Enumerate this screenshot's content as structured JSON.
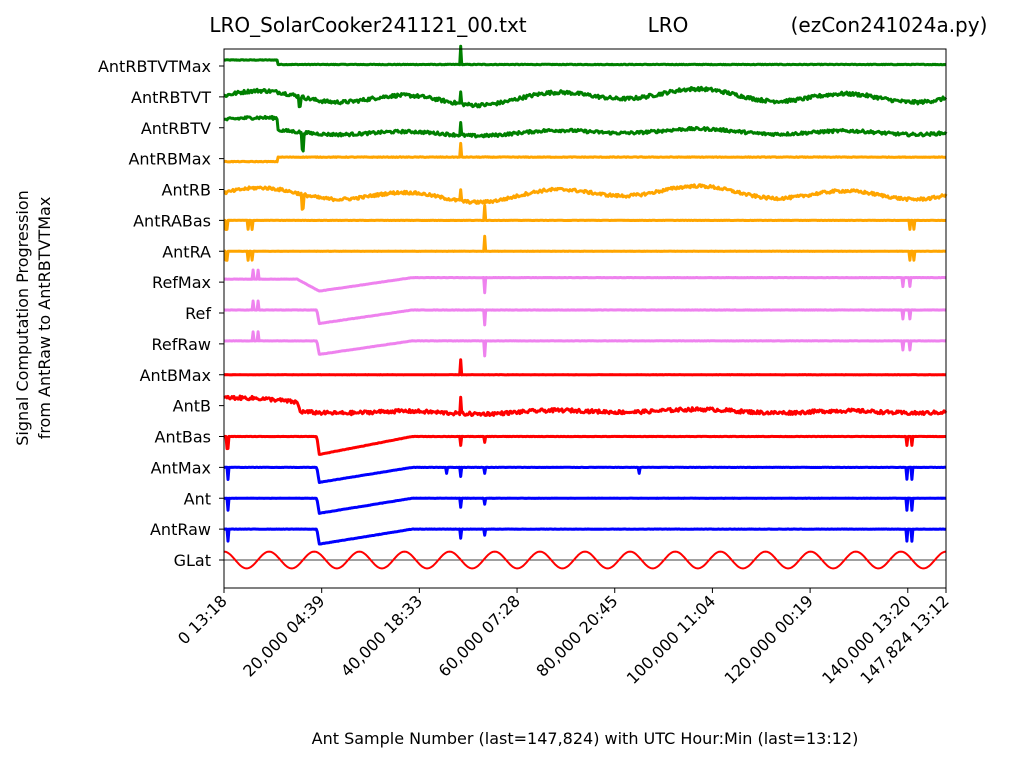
{
  "chart_data": {
    "type": "line",
    "title_left": "LRO_SolarCooker241121_00.txt",
    "title_center": "LRO",
    "title_right": "(ezCon241024a.py)",
    "xlabel": "Ant Sample Number (last=147,824) with UTC Hour:Min (last=13:12)",
    "ylabel_line1": "Signal Computation Progression",
    "ylabel_line2": "from AntRaw to AntRBTVTMax",
    "xlim": [
      0,
      147824
    ],
    "x_ticks": [
      {
        "value": 0,
        "label": "0  13:18"
      },
      {
        "value": 20000,
        "label": "20,000  04:39"
      },
      {
        "value": 40000,
        "label": "40,000  18:33"
      },
      {
        "value": 60000,
        "label": "60,000  07:28"
      },
      {
        "value": 80000,
        "label": "80,000  20:45"
      },
      {
        "value": 100000,
        "label": "100,000  11:04"
      },
      {
        "value": 120000,
        "label": "120,000  00:19"
      },
      {
        "value": 140000,
        "label": "140,000  13:20"
      },
      {
        "value": 147824,
        "label": "147,824  13:12"
      }
    ],
    "colors": {
      "green": "#008000",
      "orange": "#ffa500",
      "violet": "#ee82ee",
      "red": "#ff0000",
      "blue": "#0000ff",
      "zero_line": "#000000"
    },
    "rows": [
      {
        "label": "AntRBTVTMax",
        "color": "#008000",
        "kind": "max",
        "base": 0.2,
        "step": [
          [
            0,
            0
          ],
          [
            11000,
            0
          ],
          [
            11001,
            -0.15
          ]
        ],
        "amp": 0.02,
        "noise": 0.02,
        "spikes": [
          [
            48500,
            0.6
          ]
        ]
      },
      {
        "label": "AntRBTVT",
        "color": "#008000",
        "kind": "wavy",
        "base": 0.0,
        "amp": 0.35,
        "noise": 0.12,
        "spikes": [
          [
            48500,
            0.4
          ],
          [
            15500,
            -0.3
          ]
        ]
      },
      {
        "label": "AntRBTV",
        "color": "#008000",
        "kind": "wavy",
        "base": 0.25,
        "step": [
          [
            0,
            0
          ],
          [
            11000,
            0
          ],
          [
            11001,
            -0.4
          ]
        ],
        "amp": 0.15,
        "noise": 0.1,
        "spikes": [
          [
            16100,
            -0.6
          ],
          [
            48500,
            0.4
          ]
        ]
      },
      {
        "label": "AntRBMax",
        "color": "#ffa500",
        "kind": "max",
        "base": 0.0,
        "step": [
          [
            0,
            -0.1
          ],
          [
            11000,
            -0.1
          ],
          [
            11001,
            0.05
          ]
        ],
        "amp": 0.0,
        "noise": 0.02,
        "spikes": [
          [
            48500,
            0.45
          ]
        ]
      },
      {
        "label": "AntRB",
        "color": "#ffa500",
        "kind": "wavy",
        "base": -0.15,
        "amp": 0.35,
        "noise": 0.1,
        "spikes": [
          [
            16100,
            -0.5
          ],
          [
            48500,
            0.4
          ]
        ]
      },
      {
        "label": "AntRABas",
        "color": "#ffa500",
        "kind": "flat",
        "base": 0.0,
        "amp": 0.0,
        "noise": 0.01,
        "spikes": [
          [
            500,
            -0.3
          ],
          [
            5000,
            -0.3
          ],
          [
            5800,
            -0.3
          ],
          [
            53400,
            0.5
          ],
          [
            140500,
            -0.3
          ],
          [
            141200,
            -0.3
          ]
        ]
      },
      {
        "label": "AntRA",
        "color": "#ffa500",
        "kind": "flat",
        "base": 0.0,
        "amp": 0.0,
        "noise": 0.01,
        "spikes": [
          [
            500,
            -0.3
          ],
          [
            5000,
            -0.3
          ],
          [
            5800,
            -0.3
          ],
          [
            53400,
            0.5
          ],
          [
            140500,
            -0.3
          ],
          [
            141200,
            -0.3
          ]
        ]
      },
      {
        "label": "RefMax",
        "color": "#ee82ee",
        "kind": "step",
        "base": 0.0,
        "step": [
          [
            0,
            0.1
          ],
          [
            15000,
            0.1
          ],
          [
            19500,
            -0.3
          ],
          [
            38500,
            0.15
          ],
          [
            147824,
            0.15
          ]
        ],
        "noise": 0.01,
        "spikes": [
          [
            6000,
            0.3
          ],
          [
            7000,
            0.3
          ],
          [
            53400,
            -0.5
          ],
          [
            139000,
            -0.3
          ],
          [
            140500,
            -0.3
          ]
        ]
      },
      {
        "label": "Ref",
        "color": "#ee82ee",
        "kind": "step",
        "base": 0.0,
        "step": [
          [
            0,
            0.1
          ],
          [
            19000,
            0.1
          ],
          [
            19500,
            -0.35
          ],
          [
            38500,
            0.1
          ],
          [
            147824,
            0.1
          ]
        ],
        "noise": 0.01,
        "spikes": [
          [
            6000,
            0.3
          ],
          [
            7000,
            0.3
          ],
          [
            53400,
            -0.5
          ],
          [
            139000,
            -0.3
          ],
          [
            140500,
            -0.3
          ]
        ]
      },
      {
        "label": "RefRaw",
        "color": "#ee82ee",
        "kind": "step",
        "base": 0.0,
        "step": [
          [
            0,
            0.1
          ],
          [
            19000,
            0.1
          ],
          [
            19500,
            -0.35
          ],
          [
            38500,
            0.1
          ],
          [
            147824,
            0.1
          ]
        ],
        "noise": 0.01,
        "spikes": [
          [
            6000,
            0.3
          ],
          [
            7000,
            0.3
          ],
          [
            53400,
            -0.5
          ],
          [
            139000,
            -0.3
          ],
          [
            140500,
            -0.3
          ]
        ]
      },
      {
        "label": "AntBMax",
        "color": "#ff0000",
        "kind": "max",
        "base": 0.0,
        "amp": 0.0,
        "noise": 0.01,
        "spikes": [
          [
            48500,
            0.5
          ]
        ]
      },
      {
        "label": "AntB",
        "color": "#ff0000",
        "kind": "wavy",
        "base": 0.0,
        "step": [
          [
            0,
            0.25
          ],
          [
            15000,
            0.1
          ],
          [
            15600,
            -0.2
          ]
        ],
        "amp": 0.1,
        "noise": 0.12,
        "spikes": [
          [
            48500,
            0.5
          ]
        ]
      },
      {
        "label": "AntBas",
        "color": "#ff0000",
        "kind": "step",
        "base": 0.0,
        "step": [
          [
            0,
            0
          ],
          [
            19000,
            0
          ],
          [
            19500,
            -0.6
          ],
          [
            38500,
            0
          ],
          [
            147824,
            0
          ]
        ],
        "noise": 0.01,
        "spikes": [
          [
            700,
            -0.4
          ],
          [
            48500,
            -0.3
          ],
          [
            53400,
            -0.2
          ],
          [
            139800,
            -0.3
          ],
          [
            140800,
            -0.3
          ]
        ]
      },
      {
        "label": "AntMax",
        "color": "#0000ff",
        "kind": "step",
        "base": 0.0,
        "step": [
          [
            0,
            0
          ],
          [
            19000,
            0
          ],
          [
            19500,
            -0.5
          ],
          [
            38500,
            0
          ],
          [
            147824,
            0
          ]
        ],
        "noise": 0.01,
        "spikes": [
          [
            800,
            -0.4
          ],
          [
            45500,
            -0.2
          ],
          [
            48500,
            -0.3
          ],
          [
            53400,
            -0.2
          ],
          [
            85000,
            -0.2
          ],
          [
            139800,
            -0.4
          ],
          [
            140800,
            -0.4
          ]
        ]
      },
      {
        "label": "Ant",
        "color": "#0000ff",
        "kind": "step",
        "base": 0.0,
        "step": [
          [
            0,
            0
          ],
          [
            19000,
            0
          ],
          [
            19500,
            -0.5
          ],
          [
            38500,
            0
          ],
          [
            147824,
            0
          ]
        ],
        "noise": 0.01,
        "spikes": [
          [
            800,
            -0.4
          ],
          [
            48500,
            -0.3
          ],
          [
            53400,
            -0.2
          ],
          [
            139800,
            -0.4
          ],
          [
            140800,
            -0.4
          ]
        ]
      },
      {
        "label": "AntRaw",
        "color": "#0000ff",
        "kind": "step",
        "base": 0.0,
        "step": [
          [
            0,
            0
          ],
          [
            19000,
            0
          ],
          [
            19500,
            -0.5
          ],
          [
            38500,
            0
          ],
          [
            147824,
            0
          ]
        ],
        "noise": 0.01,
        "spikes": [
          [
            800,
            -0.4
          ],
          [
            48500,
            -0.3
          ],
          [
            53400,
            -0.2
          ],
          [
            139800,
            -0.4
          ],
          [
            140800,
            -0.4
          ]
        ]
      },
      {
        "label": "GLat",
        "color": "#ff0000",
        "kind": "sine",
        "base": 0.0,
        "amp": 0.28,
        "period": 9240,
        "phase": 0.25,
        "zero_line": true
      }
    ]
  }
}
